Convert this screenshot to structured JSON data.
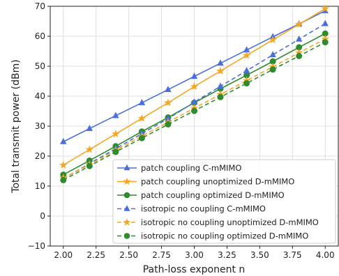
{
  "chart_data": {
    "type": "line",
    "title": "",
    "xlabel": "Path-loss exponent n",
    "ylabel": "Total transmit power (dBm)",
    "xlim": [
      1.9,
      4.1
    ],
    "ylim": [
      -10,
      70
    ],
    "xticks": [
      "2.00",
      "2.25",
      "2.50",
      "2.75",
      "3.00",
      "3.25",
      "3.50",
      "3.75",
      "4.00"
    ],
    "yticks": [
      "−10",
      "0",
      "10",
      "20",
      "30",
      "40",
      "50",
      "60",
      "70"
    ],
    "grid": true,
    "legend_position": "lower-right",
    "x": [
      2.0,
      2.2,
      2.4,
      2.6,
      2.8,
      3.0,
      3.2,
      3.4,
      3.6,
      3.8,
      4.0
    ],
    "series": [
      {
        "name": "patch coupling C-mMIMO",
        "color": "#4a6fdc",
        "dash": "solid",
        "marker": "triangle",
        "values": [
          24.8,
          29.2,
          33.5,
          37.8,
          42.2,
          46.6,
          51.0,
          55.4,
          59.8,
          64.1,
          68.5
        ]
      },
      {
        "name": "patch coupling unoptimized D-mMIMO",
        "color": "#f5a623",
        "dash": "solid",
        "marker": "star",
        "values": [
          17.0,
          22.2,
          27.4,
          32.6,
          37.8,
          43.2,
          48.4,
          53.6,
          58.8,
          64.0,
          69.2
        ]
      },
      {
        "name": "patch coupling optimized D-mMIMO",
        "color": "#2e8b2e",
        "dash": "solid",
        "marker": "circle",
        "values": [
          13.8,
          18.5,
          23.3,
          28.2,
          32.9,
          37.8,
          42.5,
          47.0,
          51.6,
          56.3,
          60.9
        ]
      },
      {
        "name": "isotropic no coupling C-mMIMO",
        "color": "#4a6fdc",
        "dash": "dashed",
        "marker": "triangle",
        "values": [
          12.5,
          17.5,
          22.5,
          27.5,
          32.5,
          38.0,
          43.3,
          48.5,
          53.8,
          59.0,
          64.2
        ]
      },
      {
        "name": "isotropic no coupling unoptimized D-mMIMO",
        "color": "#f5a623",
        "dash": "dashed",
        "marker": "star",
        "values": [
          12.7,
          17.2,
          22.0,
          26.7,
          31.3,
          36.0,
          40.6,
          45.2,
          49.8,
          54.5,
          59.1
        ]
      },
      {
        "name": "isotropic no coupling optimized D-mMIMO",
        "color": "#2e8b2e",
        "dash": "dashed",
        "marker": "circle",
        "values": [
          12.0,
          16.7,
          21.4,
          26.0,
          30.6,
          35.1,
          39.7,
          44.3,
          48.9,
          53.4,
          58.0
        ]
      }
    ]
  }
}
